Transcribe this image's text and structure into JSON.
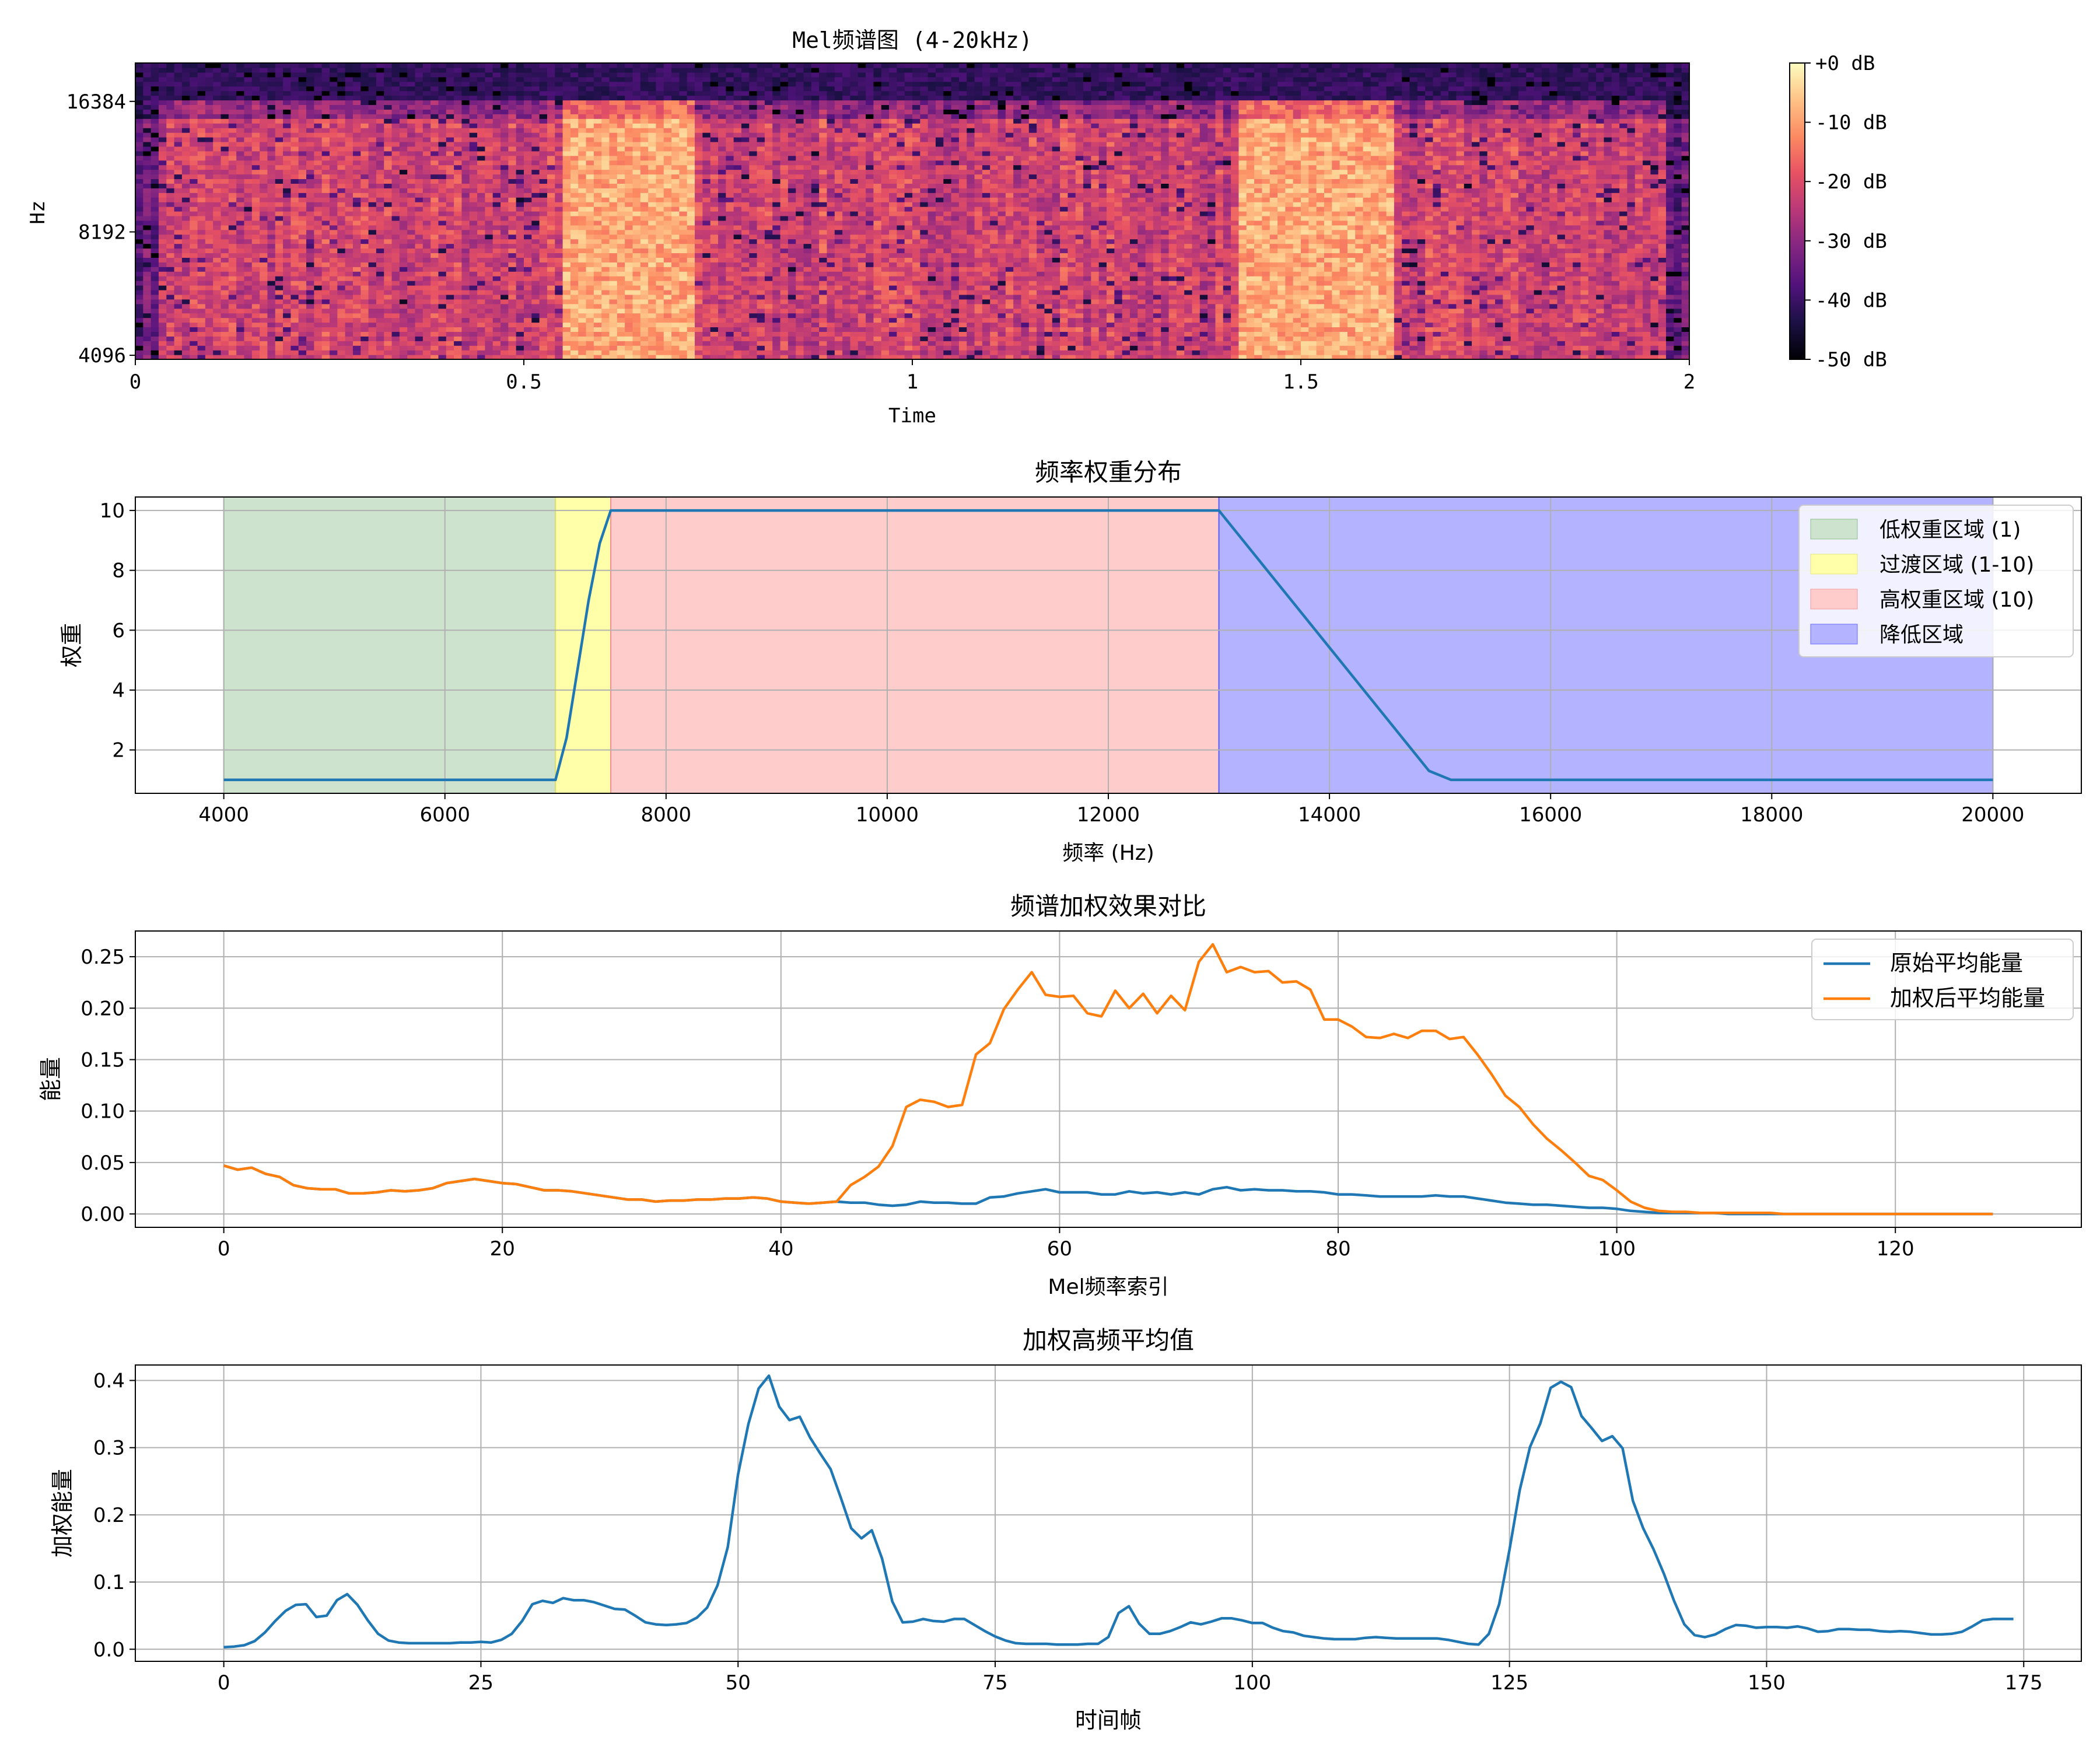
{
  "figure": {
    "background": "#ffffff"
  },
  "chart_data": [
    {
      "type": "heatmap",
      "title": "Mel频谱图 (4-20kHz)",
      "xlabel": "Time",
      "ylabel": "Hz",
      "x_ticks": [
        "0",
        "0.5",
        "1",
        "1.5",
        "2"
      ],
      "y_ticks": [
        "4096",
        "8192",
        "16384"
      ],
      "xlim": [
        0,
        2
      ],
      "ylim_hz": [
        4000,
        20000
      ],
      "y_scale": "mel",
      "colormap": "magma",
      "colorbar_ticks": [
        "+0 dB",
        "-10 dB",
        "-20 dB",
        "-30 dB",
        "-40 dB",
        "-50 dB"
      ],
      "colorbar_range_db": [
        -50,
        0
      ],
      "loud_segments_s": [
        [
          0.55,
          0.72
        ],
        [
          1.42,
          1.62
        ]
      ]
    },
    {
      "type": "line",
      "title": "频率权重分布",
      "xlabel": "频率 (Hz)",
      "ylabel": "权重",
      "x_ticks": [
        "4000",
        "6000",
        "8000",
        "10000",
        "12000",
        "14000",
        "16000",
        "18000",
        "20000"
      ],
      "y_ticks": [
        "2",
        "4",
        "6",
        "8",
        "10"
      ],
      "xlim": [
        3200,
        20800
      ],
      "ylim": [
        0.55,
        10.45
      ],
      "grid": true,
      "legend_position": "top-right",
      "regions": [
        {
          "label": "低权重区域 (1)",
          "from": 4000,
          "to": 7000,
          "color": "#cde3cd"
        },
        {
          "label": "过渡区域 (1-10)",
          "from": 7000,
          "to": 7500,
          "color": "#ffffaa"
        },
        {
          "label": "高权重区域 (10)",
          "from": 7500,
          "to": 13000,
          "color": "#ffcccc"
        },
        {
          "label": "降低区域",
          "from": 13000,
          "to": 20000,
          "color": "#b3b3ff"
        }
      ],
      "series": [
        {
          "color": "#1f77b4",
          "x": [
            4000,
            7000,
            7100,
            7200,
            7300,
            7400,
            7500,
            13000,
            14900,
            15100,
            20000
          ],
          "y": [
            1,
            1,
            2.4,
            4.7,
            7.0,
            8.9,
            10,
            10,
            1.3,
            1,
            1
          ]
        }
      ]
    },
    {
      "type": "line",
      "title": "频谱加权效果对比",
      "xlabel": "Mel频率索引",
      "ylabel": "能量",
      "x_ticks": [
        "0",
        "20",
        "40",
        "60",
        "80",
        "100",
        "120"
      ],
      "y_ticks": [
        "0.00",
        "0.05",
        "0.10",
        "0.15",
        "0.20",
        "0.25"
      ],
      "xlim": [
        -6.35,
        133.35
      ],
      "ylim": [
        -0.013,
        0.275
      ],
      "grid": true,
      "legend_position": "top-right",
      "series": [
        {
          "name": "原始平均能量",
          "color": "#1f77b4",
          "values": [
            0.047,
            0.043,
            0.045,
            0.039,
            0.036,
            0.028,
            0.025,
            0.024,
            0.024,
            0.02,
            0.02,
            0.021,
            0.023,
            0.022,
            0.023,
            0.025,
            0.03,
            0.032,
            0.034,
            0.032,
            0.03,
            0.029,
            0.026,
            0.023,
            0.023,
            0.022,
            0.02,
            0.018,
            0.016,
            0.014,
            0.014,
            0.012,
            0.013,
            0.013,
            0.014,
            0.014,
            0.015,
            0.015,
            0.016,
            0.015,
            0.012,
            0.011,
            0.01,
            0.011,
            0.012,
            0.011,
            0.011,
            0.009,
            0.008,
            0.009,
            0.012,
            0.011,
            0.011,
            0.01,
            0.01,
            0.016,
            0.017,
            0.02,
            0.022,
            0.024,
            0.021,
            0.021,
            0.021,
            0.019,
            0.019,
            0.022,
            0.02,
            0.021,
            0.019,
            0.021,
            0.019,
            0.024,
            0.026,
            0.023,
            0.024,
            0.023,
            0.023,
            0.022,
            0.022,
            0.021,
            0.019,
            0.019,
            0.018,
            0.017,
            0.017,
            0.017,
            0.017,
            0.018,
            0.017,
            0.017,
            0.015,
            0.013,
            0.011,
            0.01,
            0.009,
            0.009,
            0.008,
            0.007,
            0.006,
            0.006,
            0.005,
            0.003,
            0.002,
            0.001,
            0.001,
            0.001,
            0.001,
            0.001,
            0.0,
            0.0,
            0.0,
            0.0,
            0.0,
            0.0,
            0.0,
            0.0,
            0.0,
            0.0,
            0.0,
            0.0,
            0.0,
            0.0,
            0.0,
            0.0,
            0.0,
            0.0,
            0.0,
            0.0
          ]
        },
        {
          "name": "加权后平均能量",
          "color": "#ff7f0e",
          "values": [
            0.047,
            0.043,
            0.045,
            0.039,
            0.036,
            0.028,
            0.025,
            0.024,
            0.024,
            0.02,
            0.02,
            0.021,
            0.023,
            0.022,
            0.023,
            0.025,
            0.03,
            0.032,
            0.034,
            0.032,
            0.03,
            0.029,
            0.026,
            0.023,
            0.023,
            0.022,
            0.02,
            0.018,
            0.016,
            0.014,
            0.014,
            0.012,
            0.013,
            0.013,
            0.014,
            0.014,
            0.015,
            0.015,
            0.016,
            0.015,
            0.012,
            0.011,
            0.01,
            0.011,
            0.012,
            0.028,
            0.036,
            0.046,
            0.066,
            0.104,
            0.111,
            0.109,
            0.104,
            0.106,
            0.155,
            0.166,
            0.199,
            0.218,
            0.235,
            0.213,
            0.211,
            0.212,
            0.195,
            0.192,
            0.217,
            0.2,
            0.214,
            0.195,
            0.212,
            0.198,
            0.245,
            0.262,
            0.235,
            0.24,
            0.235,
            0.236,
            0.225,
            0.226,
            0.218,
            0.189,
            0.189,
            0.182,
            0.172,
            0.171,
            0.175,
            0.171,
            0.178,
            0.178,
            0.17,
            0.172,
            0.155,
            0.136,
            0.115,
            0.104,
            0.087,
            0.073,
            0.062,
            0.05,
            0.037,
            0.033,
            0.023,
            0.012,
            0.006,
            0.003,
            0.002,
            0.002,
            0.001,
            0.001,
            0.001,
            0.001,
            0.001,
            0.001,
            0.0,
            0.0,
            0.0,
            0.0,
            0.0,
            0.0,
            0.0,
            0.0,
            0.0,
            0.0,
            0.0,
            0.0,
            0.0,
            0.0,
            0.0,
            0.0
          ]
        }
      ]
    },
    {
      "type": "line",
      "title": "加权高频平均值",
      "xlabel": "时间帧",
      "ylabel": "加权能量",
      "x_ticks": [
        "0",
        "25",
        "50",
        "75",
        "100",
        "125",
        "150",
        "175"
      ],
      "y_ticks": [
        "0.0",
        "0.1",
        "0.2",
        "0.3",
        "0.4"
      ],
      "xlim": [
        -8.6,
        180.6
      ],
      "ylim": [
        -0.018,
        0.423
      ],
      "grid": true,
      "series": [
        {
          "color": "#1f77b4",
          "values": [
            0.003,
            0.004,
            0.006,
            0.012,
            0.025,
            0.042,
            0.057,
            0.066,
            0.067,
            0.048,
            0.05,
            0.073,
            0.082,
            0.066,
            0.043,
            0.023,
            0.013,
            0.01,
            0.009,
            0.009,
            0.009,
            0.009,
            0.009,
            0.01,
            0.01,
            0.011,
            0.01,
            0.014,
            0.023,
            0.042,
            0.067,
            0.072,
            0.069,
            0.076,
            0.073,
            0.073,
            0.07,
            0.065,
            0.06,
            0.059,
            0.05,
            0.04,
            0.037,
            0.036,
            0.037,
            0.039,
            0.047,
            0.062,
            0.095,
            0.152,
            0.26,
            0.335,
            0.388,
            0.407,
            0.361,
            0.341,
            0.346,
            0.315,
            0.291,
            0.268,
            0.225,
            0.18,
            0.165,
            0.177,
            0.135,
            0.071,
            0.04,
            0.041,
            0.045,
            0.042,
            0.041,
            0.045,
            0.045,
            0.036,
            0.027,
            0.019,
            0.013,
            0.009,
            0.008,
            0.008,
            0.008,
            0.007,
            0.007,
            0.007,
            0.008,
            0.008,
            0.018,
            0.054,
            0.064,
            0.038,
            0.023,
            0.023,
            0.027,
            0.033,
            0.04,
            0.037,
            0.041,
            0.046,
            0.046,
            0.043,
            0.039,
            0.039,
            0.032,
            0.027,
            0.025,
            0.02,
            0.018,
            0.016,
            0.015,
            0.015,
            0.015,
            0.017,
            0.018,
            0.017,
            0.016,
            0.016,
            0.016,
            0.016,
            0.016,
            0.014,
            0.011,
            0.008,
            0.007,
            0.023,
            0.067,
            0.148,
            0.237,
            0.301,
            0.336,
            0.389,
            0.398,
            0.39,
            0.347,
            0.329,
            0.31,
            0.317,
            0.299,
            0.221,
            0.18,
            0.149,
            0.113,
            0.072,
            0.037,
            0.021,
            0.018,
            0.022,
            0.03,
            0.036,
            0.035,
            0.032,
            0.033,
            0.033,
            0.032,
            0.034,
            0.031,
            0.026,
            0.027,
            0.03,
            0.03,
            0.029,
            0.029,
            0.027,
            0.026,
            0.027,
            0.026,
            0.024,
            0.022,
            0.022,
            0.023,
            0.026,
            0.034,
            0.043,
            0.045,
            0.045,
            0.045
          ]
        }
      ]
    }
  ]
}
